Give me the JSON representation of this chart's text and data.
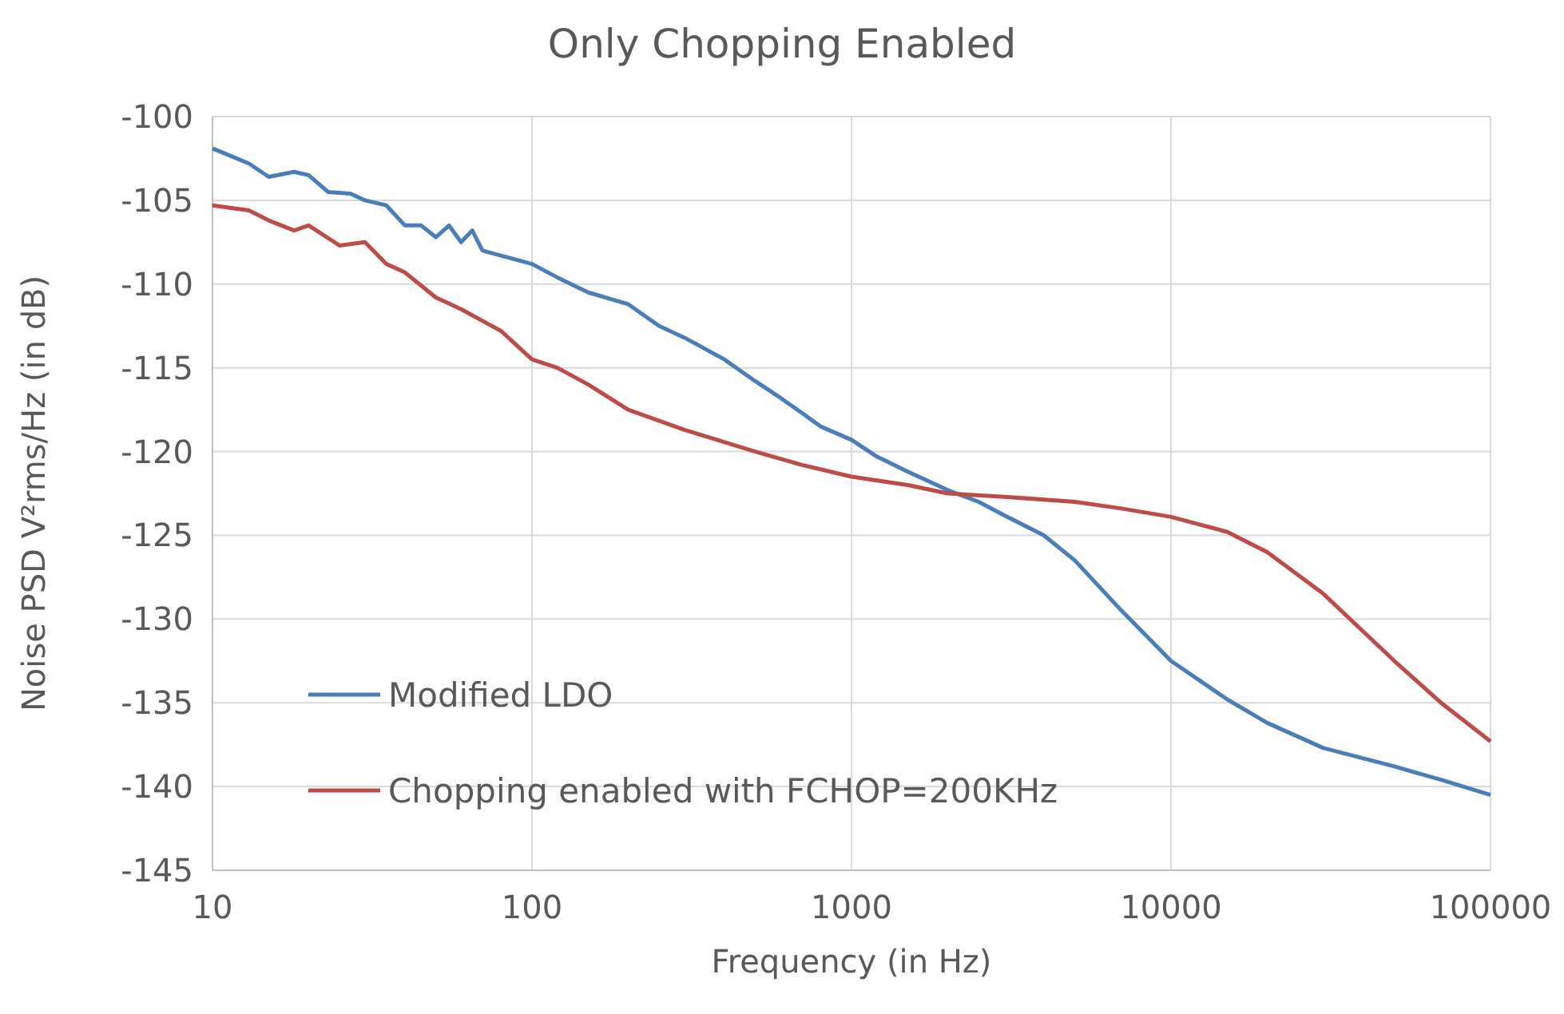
{
  "chart_data": {
    "type": "line",
    "title": "Only Chopping Enabled",
    "xlabel": "Frequency (in Hz)",
    "ylabel": "Noise PSD V²rms/Hz (in dB)",
    "log": "x",
    "grid": true,
    "legend": "bottom left",
    "marker": "none",
    "line_style": "solid",
    "xlim": [
      10,
      100000
    ],
    "xticks": [
      10,
      100,
      1000,
      10000,
      100000
    ],
    "ylim": [
      -145,
      -100
    ],
    "yticks": [
      -145,
      -140,
      -135,
      -130,
      -125,
      -120,
      -115,
      -110,
      -105,
      -100
    ],
    "series": [
      {
        "name": "Modified LDO",
        "color": "#4a7ebb",
        "x": [
          10,
          13,
          15,
          18,
          20,
          23,
          27,
          30,
          35,
          40,
          45,
          50,
          55,
          60,
          65,
          70,
          80,
          100,
          120,
          150,
          200,
          250,
          300,
          400,
          500,
          600,
          700,
          800,
          1000,
          1200,
          1500,
          2000,
          2500,
          3000,
          4000,
          5000,
          7000,
          10000,
          15000,
          20000,
          30000,
          50000,
          70000,
          100000
        ],
        "values": [
          -101.9,
          -102.8,
          -103.6,
          -103.3,
          -103.5,
          -104.5,
          -104.6,
          -105.0,
          -105.3,
          -106.5,
          -106.5,
          -107.2,
          -106.5,
          -107.5,
          -106.8,
          -108.0,
          -108.3,
          -108.8,
          -109.6,
          -110.5,
          -111.2,
          -112.5,
          -113.2,
          -114.5,
          -115.8,
          -116.8,
          -117.7,
          -118.5,
          -119.3,
          -120.3,
          -121.2,
          -122.3,
          -123.0,
          -123.8,
          -125.0,
          -126.5,
          -129.5,
          -132.5,
          -134.8,
          -136.2,
          -137.7,
          -138.8,
          -139.6,
          -140.5
        ]
      },
      {
        "name": "Chopping enabled with FCHOP=200KHz",
        "color": "#be4b48",
        "x": [
          10,
          13,
          15,
          18,
          20,
          25,
          30,
          35,
          40,
          50,
          60,
          70,
          80,
          100,
          120,
          150,
          200,
          300,
          500,
          700,
          1000,
          1500,
          2000,
          3000,
          5000,
          7000,
          10000,
          15000,
          20000,
          30000,
          50000,
          70000,
          100000
        ],
        "values": [
          -105.3,
          -105.6,
          -106.2,
          -106.8,
          -106.5,
          -107.7,
          -107.5,
          -108.8,
          -109.3,
          -110.8,
          -111.5,
          -112.2,
          -112.8,
          -114.5,
          -115.0,
          -116.0,
          -117.5,
          -118.7,
          -120.0,
          -120.8,
          -121.5,
          -122.0,
          -122.5,
          -122.7,
          -123.0,
          -123.4,
          -123.9,
          -124.8,
          -126.0,
          -128.5,
          -132.5,
          -135.0,
          -137.3
        ]
      }
    ]
  }
}
